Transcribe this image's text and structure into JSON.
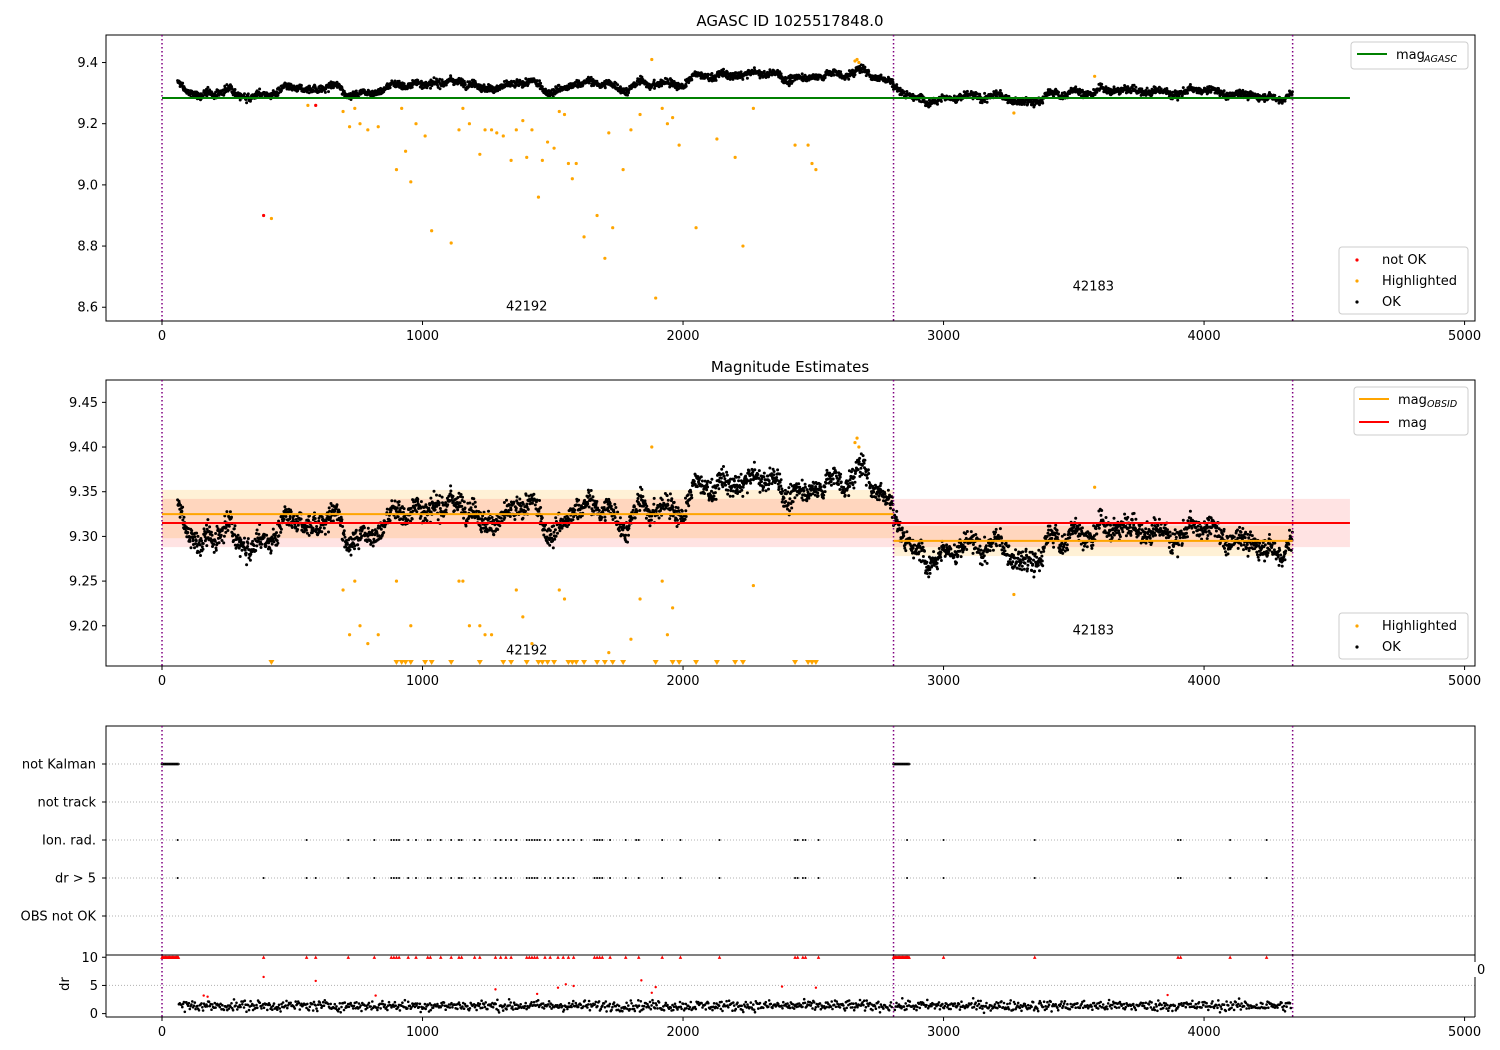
{
  "chart_data": [
    {
      "type": "scatter",
      "title": "AGASC ID 1025517848.0",
      "xlabel": "",
      "ylabel": "",
      "xlim": [
        -215,
        5040
      ],
      "ylim": [
        8.555,
        9.49
      ],
      "xticks": [
        0,
        1000,
        2000,
        3000,
        4000,
        5000
      ],
      "yticks": [
        8.6,
        8.8,
        9.0,
        9.2,
        9.4
      ],
      "ytick_labels": [
        "8.6",
        "8.8",
        "9.0",
        "9.2",
        "9.4"
      ],
      "vlines": {
        "color": "#800080",
        "style": "dotted",
        "x": [
          0,
          2808,
          4340
        ]
      },
      "hlines": [
        {
          "name": "mag_AGASC",
          "y": 9.284,
          "x": [
            0,
            4560
          ],
          "color": "#008000"
        }
      ],
      "obsid_labels": [
        {
          "text": "42192",
          "x": 1400,
          "y": 8.59
        },
        {
          "text": "42183",
          "x": 3575,
          "y": 8.655
        }
      ],
      "legend_top": {
        "placement": "top-right",
        "entries": [
          {
            "label": "mag",
            "sub": "AGASC",
            "color": "#008000",
            "kind": "line"
          }
        ]
      },
      "legend_bottom": {
        "placement": "bottom-right",
        "entries": [
          {
            "label": "not OK",
            "color": "#ff0000",
            "kind": "dot"
          },
          {
            "label": "Highlighted",
            "color": "#ffa500",
            "kind": "dot"
          },
          {
            "label": "OK",
            "color": "#000000",
            "kind": "dot"
          }
        ]
      },
      "segments": [
        {
          "x0": 60,
          "x1": 2808,
          "knots": [
            [
              60,
              9.33
            ],
            [
              150,
              9.29
            ],
            [
              300,
              9.31
            ],
            [
              500,
              9.3
            ],
            [
              650,
              9.325
            ],
            [
              700,
              9.29
            ],
            [
              850,
              9.33
            ],
            [
              1000,
              9.335
            ],
            [
              1200,
              9.34
            ],
            [
              1400,
              9.32
            ],
            [
              1500,
              9.31
            ],
            [
              1680,
              9.33
            ],
            [
              1800,
              9.32
            ],
            [
              2000,
              9.34
            ],
            [
              2200,
              9.36
            ],
            [
              2400,
              9.35
            ],
            [
              2600,
              9.36
            ],
            [
              2680,
              9.38
            ],
            [
              2808,
              9.33
            ]
          ]
        },
        {
          "x0": 2808,
          "x1": 4340,
          "knots": [
            [
              2808,
              9.32
            ],
            [
              2900,
              9.29
            ],
            [
              3100,
              9.295
            ],
            [
              3200,
              9.29
            ],
            [
              3300,
              9.26
            ],
            [
              3400,
              9.29
            ],
            [
              3600,
              9.31
            ],
            [
              3800,
              9.31
            ],
            [
              4000,
              9.305
            ],
            [
              4200,
              9.29
            ],
            [
              4340,
              9.305
            ]
          ]
        }
      ],
      "highlighted": [
        [
          420,
          8.89
        ],
        [
          560,
          9.26
        ],
        [
          695,
          9.24
        ],
        [
          720,
          9.19
        ],
        [
          740,
          9.25
        ],
        [
          760,
          9.2
        ],
        [
          790,
          9.18
        ],
        [
          830,
          9.19
        ],
        [
          900,
          9.05
        ],
        [
          920,
          9.25
        ],
        [
          935,
          9.11
        ],
        [
          955,
          9.01
        ],
        [
          975,
          9.2
        ],
        [
          1010,
          9.16
        ],
        [
          1035,
          8.85
        ],
        [
          1110,
          8.81
        ],
        [
          1140,
          9.18
        ],
        [
          1155,
          9.25
        ],
        [
          1180,
          9.2
        ],
        [
          1220,
          9.1
        ],
        [
          1240,
          9.18
        ],
        [
          1265,
          9.18
        ],
        [
          1285,
          9.17
        ],
        [
          1310,
          9.16
        ],
        [
          1340,
          9.08
        ],
        [
          1360,
          9.18
        ],
        [
          1385,
          9.21
        ],
        [
          1400,
          9.09
        ],
        [
          1420,
          9.18
        ],
        [
          1445,
          8.96
        ],
        [
          1460,
          9.08
        ],
        [
          1480,
          9.14
        ],
        [
          1505,
          9.12
        ],
        [
          1525,
          9.24
        ],
        [
          1545,
          9.23
        ],
        [
          1560,
          9.07
        ],
        [
          1575,
          9.02
        ],
        [
          1590,
          9.07
        ],
        [
          1620,
          8.83
        ],
        [
          1670,
          8.9
        ],
        [
          1700,
          8.76
        ],
        [
          1715,
          9.17
        ],
        [
          1730,
          8.86
        ],
        [
          1770,
          9.05
        ],
        [
          1800,
          9.18
        ],
        [
          1835,
          9.23
        ],
        [
          1880,
          9.41
        ],
        [
          1895,
          8.63
        ],
        [
          1920,
          9.25
        ],
        [
          1940,
          9.2
        ],
        [
          1960,
          9.22
        ],
        [
          1985,
          9.13
        ],
        [
          2050,
          8.86
        ],
        [
          2130,
          9.15
        ],
        [
          2200,
          9.09
        ],
        [
          2230,
          8.8
        ],
        [
          2270,
          9.25
        ],
        [
          2430,
          9.13
        ],
        [
          2480,
          9.13
        ],
        [
          2495,
          9.07
        ],
        [
          2510,
          9.05
        ],
        [
          2660,
          9.405
        ],
        [
          2668,
          9.41
        ],
        [
          2675,
          9.4
        ],
        [
          3270,
          9.235
        ],
        [
          3580,
          9.355
        ]
      ],
      "not_ok": [
        [
          390,
          8.9
        ],
        [
          590,
          9.26
        ]
      ]
    },
    {
      "type": "scatter",
      "title": "Magnitude Estimates",
      "xlabel": "",
      "ylabel": "",
      "xlim": [
        -215,
        5040
      ],
      "ylim": [
        9.155,
        9.475
      ],
      "xticks": [
        0,
        1000,
        2000,
        3000,
        4000,
        5000
      ],
      "yticks": [
        9.2,
        9.25,
        9.3,
        9.35,
        9.4,
        9.45
      ],
      "ytick_labels": [
        "9.20",
        "9.25",
        "9.30",
        "9.35",
        "9.40",
        "9.45"
      ],
      "vlines": {
        "color": "#800080",
        "style": "dotted",
        "x": [
          0,
          2808,
          4340
        ]
      },
      "hlines": [
        {
          "name": "mag_OBSID 42192",
          "y": 9.325,
          "x": [
            0,
            2808
          ],
          "color": "#ffa500",
          "band": [
            9.298,
            9.352
          ]
        },
        {
          "name": "mag_OBSID 42183",
          "y": 9.295,
          "x": [
            2808,
            4340
          ],
          "color": "#ffa500",
          "band": [
            9.278,
            9.312
          ]
        },
        {
          "name": "mag",
          "y": 9.315,
          "x": [
            0,
            4560
          ],
          "color": "#ff0000",
          "band": [
            9.288,
            9.342
          ]
        }
      ],
      "obsid_labels": [
        {
          "text": "42192",
          "x": 1400,
          "y": 9.168
        },
        {
          "text": "42183",
          "x": 3575,
          "y": 9.19
        }
      ],
      "legend_top": {
        "placement": "top-right",
        "entries": [
          {
            "label": "mag",
            "sub": "OBSID",
            "color": "#ffa500",
            "kind": "line"
          },
          {
            "label": "mag",
            "sub": "",
            "color": "#ff0000",
            "kind": "line"
          }
        ]
      },
      "legend_bottom": {
        "placement": "bottom-right",
        "entries": [
          {
            "label": "Highlighted",
            "color": "#ffa500",
            "kind": "dot"
          },
          {
            "label": "OK",
            "color": "#000000",
            "kind": "dot"
          }
        ]
      },
      "highlighted": [
        [
          695,
          9.24
        ],
        [
          720,
          9.19
        ],
        [
          740,
          9.25
        ],
        [
          760,
          9.2
        ],
        [
          790,
          9.18
        ],
        [
          830,
          9.19
        ],
        [
          900,
          9.25
        ],
        [
          955,
          9.2
        ],
        [
          1140,
          9.25
        ],
        [
          1155,
          9.25
        ],
        [
          1180,
          9.2
        ],
        [
          1220,
          9.2
        ],
        [
          1240,
          9.19
        ],
        [
          1265,
          9.19
        ],
        [
          1360,
          9.24
        ],
        [
          1385,
          9.21
        ],
        [
          1420,
          9.18
        ],
        [
          1525,
          9.24
        ],
        [
          1545,
          9.23
        ],
        [
          1715,
          9.17
        ],
        [
          1800,
          9.185
        ],
        [
          1835,
          9.23
        ],
        [
          1880,
          9.4
        ],
        [
          1920,
          9.25
        ],
        [
          1940,
          9.19
        ],
        [
          1960,
          9.22
        ],
        [
          2270,
          9.245
        ],
        [
          2660,
          9.405
        ],
        [
          2668,
          9.41
        ],
        [
          2675,
          9.4
        ],
        [
          3270,
          9.235
        ],
        [
          3580,
          9.355
        ]
      ],
      "lower_limits_x": [
        420,
        900,
        920,
        935,
        955,
        1010,
        1035,
        1110,
        1220,
        1310,
        1340,
        1400,
        1445,
        1460,
        1480,
        1505,
        1560,
        1575,
        1590,
        1620,
        1670,
        1700,
        1730,
        1770,
        1895,
        1960,
        1985,
        2050,
        2130,
        2200,
        2230,
        2430,
        2480,
        2495,
        2510
      ]
    },
    {
      "type": "scatter",
      "title": "",
      "xlim": [
        -215,
        5040
      ],
      "xticks": [
        0,
        1000,
        2000,
        3000,
        4000,
        5000
      ],
      "flag_rows": [
        "not Kalman",
        "not track",
        "Ion. rad.",
        "dr > 5",
        "OBS not OK"
      ],
      "flags": {
        "not Kalman": [
          [
            0,
            65
          ],
          [
            2808,
            2870
          ]
        ],
        "not track": [],
        "Ion. rad.": [
          60,
          555,
          715,
          815,
          880,
          890,
          900,
          910,
          945,
          975,
          1020,
          1030,
          1070,
          1110,
          1140,
          1150,
          1200,
          1220,
          1280,
          1300,
          1320,
          1340,
          1360,
          1400,
          1410,
          1420,
          1430,
          1440,
          1450,
          1470,
          1490,
          1520,
          1540,
          1560,
          1580,
          1610,
          1660,
          1670,
          1680,
          1690,
          1720,
          1780,
          1820,
          1830,
          1920,
          1990,
          2140,
          2430,
          2440,
          2460,
          2470,
          2520,
          2860,
          3000,
          3350,
          3900,
          3910,
          4100,
          4240
        ],
        "dr > 5": [
          60,
          390,
          555,
          590,
          715,
          815,
          880,
          890,
          900,
          910,
          945,
          975,
          1020,
          1030,
          1070,
          1110,
          1140,
          1150,
          1200,
          1220,
          1280,
          1300,
          1320,
          1340,
          1400,
          1410,
          1420,
          1430,
          1440,
          1470,
          1490,
          1520,
          1540,
          1560,
          1580,
          1660,
          1670,
          1680,
          1690,
          1720,
          1780,
          1830,
          1920,
          1990,
          2140,
          2430,
          2440,
          2460,
          2470,
          2520,
          2860,
          3000,
          3350,
          3900,
          3910,
          4100,
          4240
        ],
        "OBS not OK": []
      }
    },
    {
      "type": "scatter",
      "title": "",
      "xlabel": "",
      "ylabel": "dr",
      "xlim": [
        -215,
        5040
      ],
      "ylim": [
        -0.6,
        10.4
      ],
      "xticks": [
        0,
        1000,
        2000,
        3000,
        4000,
        5000
      ],
      "yticks": [
        0,
        5,
        10
      ],
      "vlines": {
        "color": "#800080",
        "style": "dotted",
        "x": [
          0,
          2808,
          4340
        ]
      },
      "clipped_at": 10,
      "outliers": [
        [
          390,
          6.5
        ],
        [
          590,
          5.8
        ],
        [
          1280,
          4.3
        ],
        [
          1440,
          3.5
        ],
        [
          1520,
          4.6
        ],
        [
          1550,
          5.2
        ],
        [
          1580,
          4.9
        ],
        [
          1840,
          5.9
        ],
        [
          1880,
          3.7
        ],
        [
          1895,
          4.7
        ],
        [
          2380,
          4.8
        ],
        [
          2510,
          4.6
        ],
        [
          3860,
          3.3
        ],
        [
          160,
          3.2
        ],
        [
          175,
          3.0
        ],
        [
          820,
          3.2
        ]
      ],
      "segments": [
        {
          "x0": 60,
          "x1": 2808,
          "mean": 1.4,
          "spread": 1.2
        },
        {
          "x0": 2808,
          "x1": 4340,
          "mean": 1.4,
          "spread": 1.2
        }
      ],
      "stray_tick_label": "0"
    }
  ]
}
